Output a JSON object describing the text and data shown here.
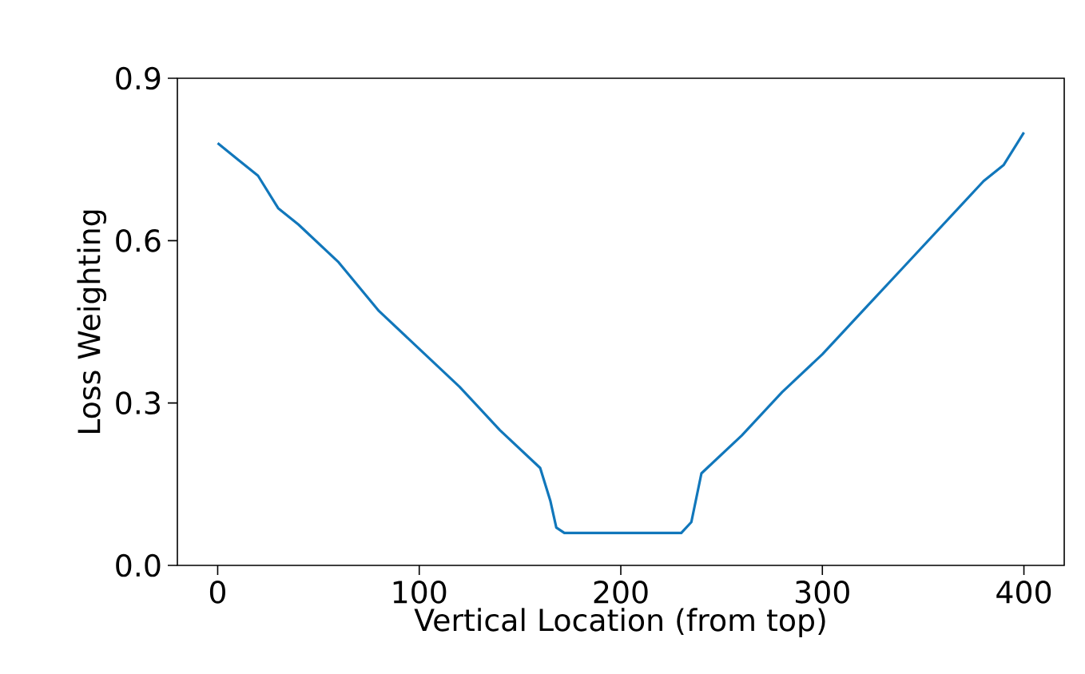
{
  "chart_data": {
    "type": "line",
    "xlabel": "Vertical Location (from top)",
    "ylabel": "Loss Weighting",
    "x": [
      0,
      10,
      20,
      30,
      40,
      60,
      80,
      100,
      120,
      140,
      160,
      165,
      168,
      172,
      230,
      235,
      240,
      260,
      280,
      300,
      320,
      340,
      360,
      380,
      390,
      400
    ],
    "series": [
      {
        "color": "#1177bb",
        "values": [
          0.78,
          0.75,
          0.72,
          0.66,
          0.63,
          0.56,
          0.47,
          0.4,
          0.33,
          0.25,
          0.18,
          0.12,
          0.07,
          0.06,
          0.06,
          0.08,
          0.17,
          0.24,
          0.32,
          0.39,
          0.47,
          0.55,
          0.63,
          0.71,
          0.74,
          0.8
        ]
      }
    ],
    "xlim": [
      -20,
      420
    ],
    "ylim": [
      0,
      0.9
    ],
    "xticks": [
      0,
      100,
      200,
      300,
      400
    ],
    "yticks": [
      {
        "value": 0,
        "label": "0.0"
      },
      {
        "value": 0.3,
        "label": "0.3"
      },
      {
        "value": 0.6,
        "label": "0.6"
      },
      {
        "value": 0.9,
        "label": "0.9"
      }
    ],
    "grid": false,
    "marker": "none",
    "line_style": "solid"
  }
}
